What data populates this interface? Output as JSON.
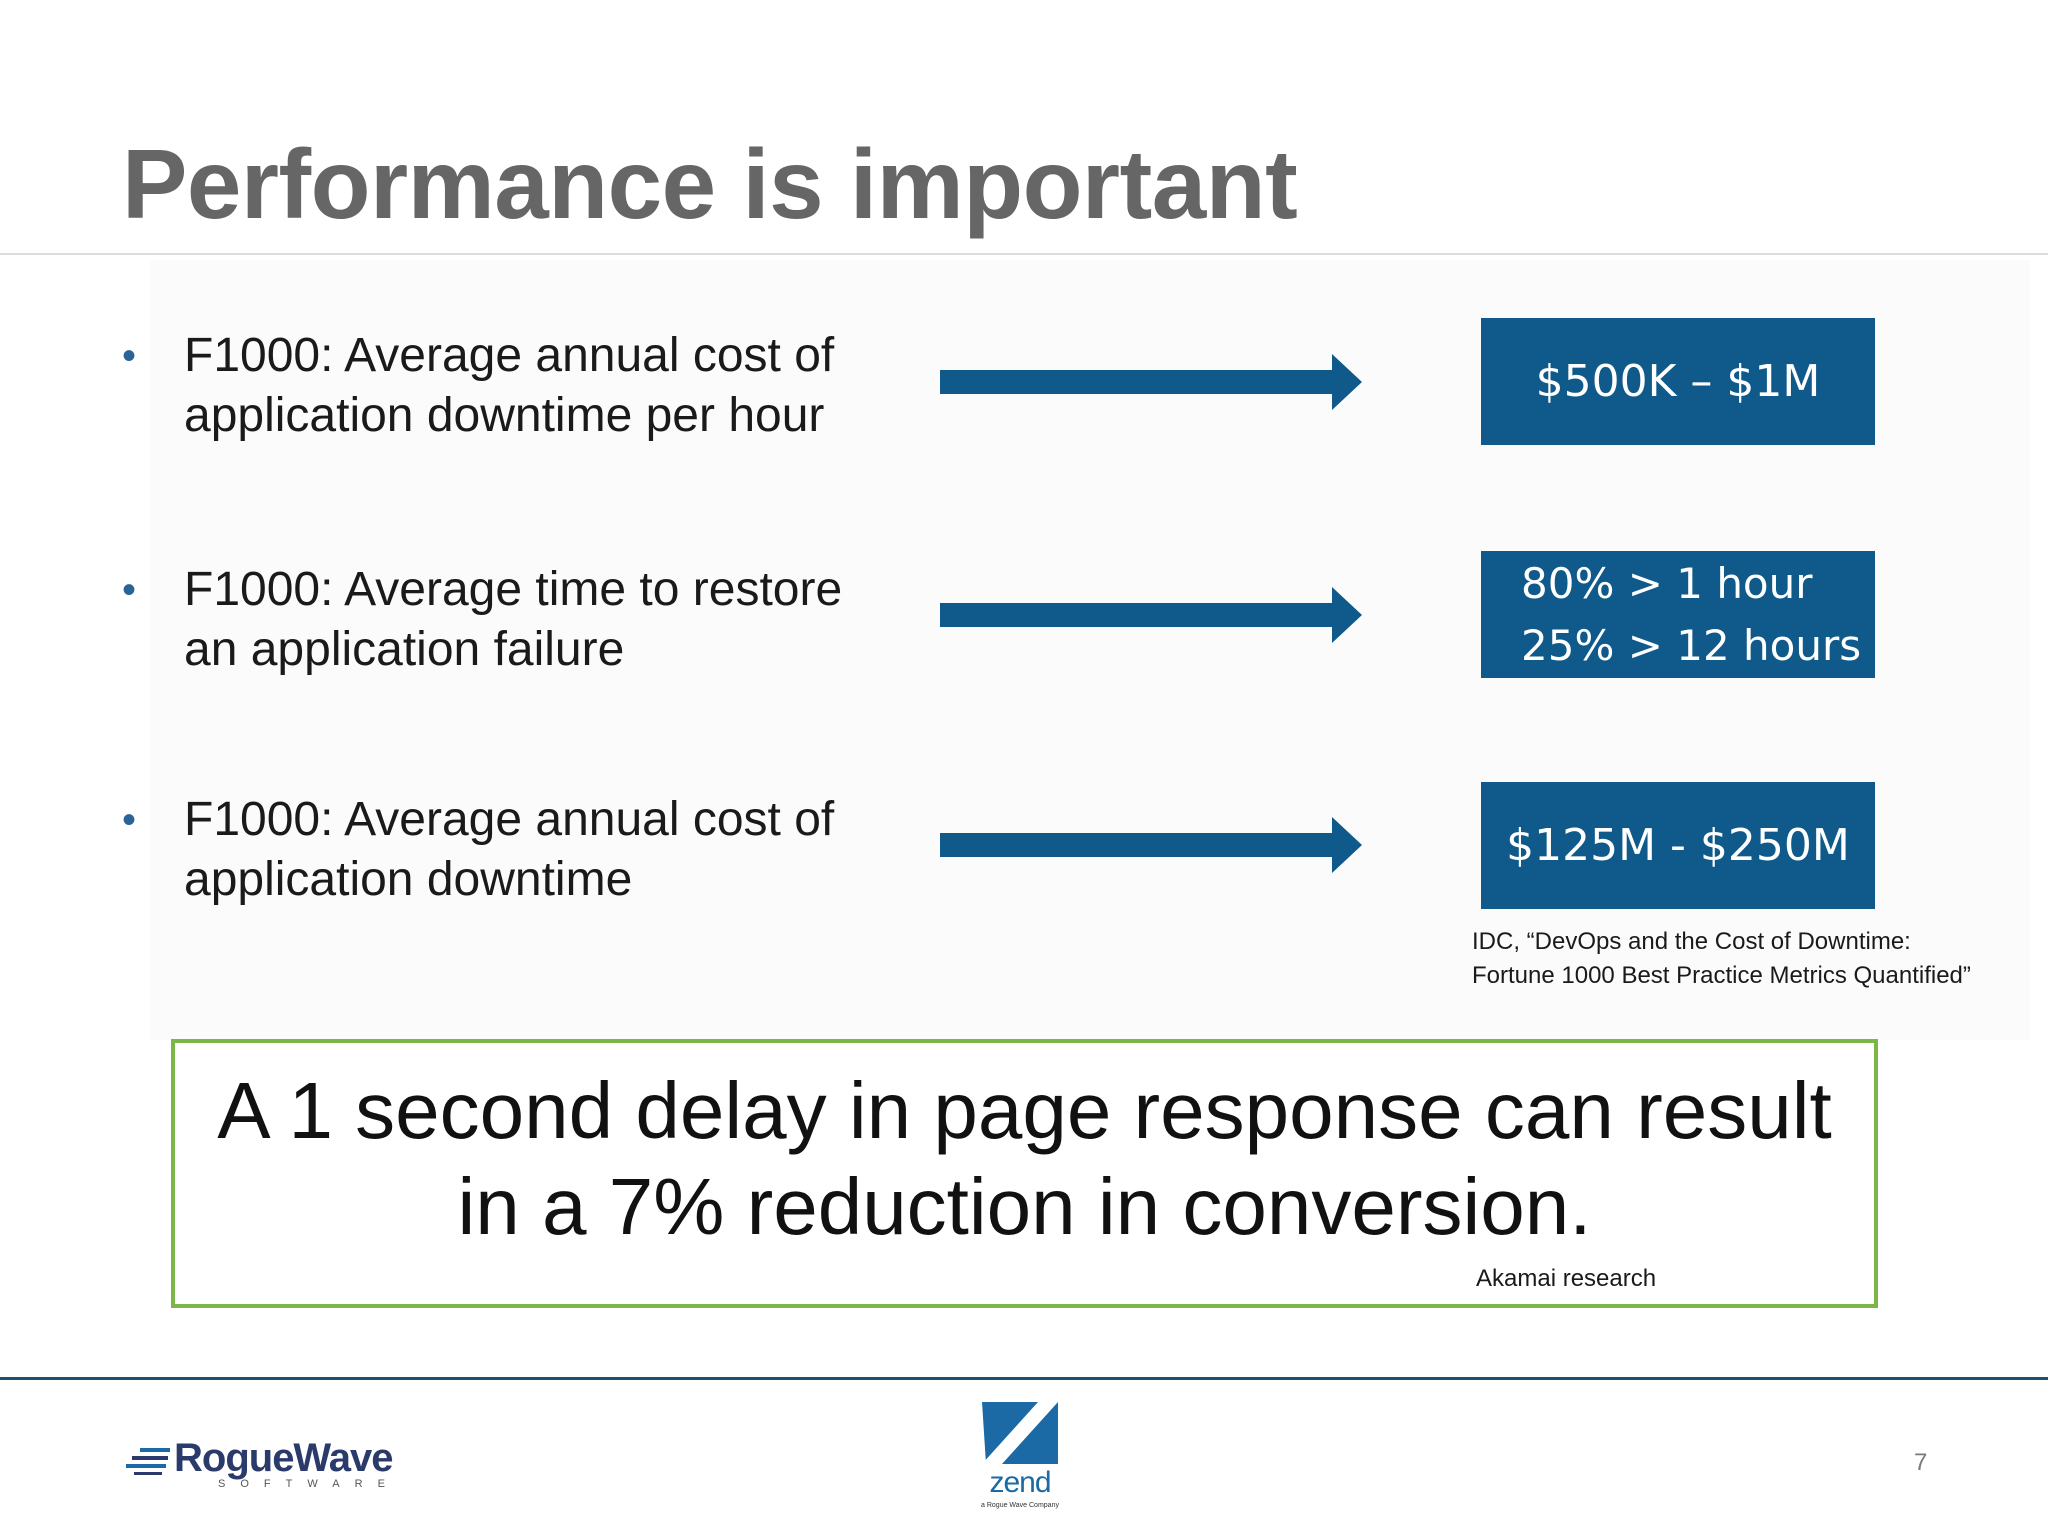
{
  "slide": {
    "title": "Performance is important",
    "bullets": [
      {
        "line1": "F1000: Average annual cost of",
        "line2": "application downtime per hour"
      },
      {
        "line1": "F1000: Average time to restore",
        "line2": "an application failure"
      },
      {
        "line1": "F1000: Average annual cost of",
        "line2": "application downtime"
      }
    ],
    "values": [
      {
        "line1": "$500K – $1M"
      },
      {
        "line1": "80% > 1 hour",
        "line2": "25% > 12 hours"
      },
      {
        "line1": "$125M - $250M"
      }
    ],
    "source": {
      "line1": "IDC, “DevOps and the Cost of Downtime:",
      "line2": "Fortune 1000 Best Practice Metrics Quantified”"
    },
    "callout": {
      "line1": "A 1 second delay in page response can result",
      "line2": "in a 7% reduction in conversion.",
      "source": "Akamai research"
    },
    "footer": {
      "roguewave": {
        "name": "RogueWave",
        "tagline": "SOFTWARE"
      },
      "zend": {
        "name": "zend",
        "tagline": "a Rogue Wave Company"
      },
      "page_number": "7"
    }
  },
  "colors": {
    "title": "#666666",
    "accent_blue": "#0f5a8a",
    "bullet_blue": "#2a6496",
    "callout_border": "#7ab648",
    "footer_rule": "#1d4f73"
  },
  "icons": {
    "arrow": "right-arrow-icon",
    "roguewave_logo": "roguewave-logo-icon",
    "zend_logo": "zend-logo-icon"
  }
}
